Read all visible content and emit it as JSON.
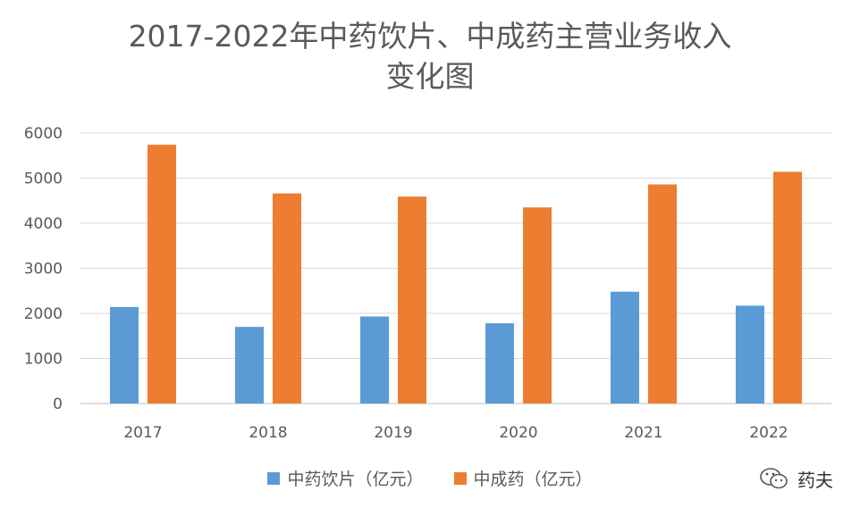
{
  "chart_data": {
    "type": "bar",
    "title_lines": [
      "2017-2022年中药饮片、中成药主营业务收入",
      "变化图"
    ],
    "categories": [
      "2017",
      "2018",
      "2019",
      "2020",
      "2021",
      "2022"
    ],
    "series": [
      {
        "name": "中药饮片（亿元）",
        "color": "#5b9bd5",
        "values": [
          2140,
          1700,
          1930,
          1780,
          2480,
          2170
        ]
      },
      {
        "name": "中成药（亿元）",
        "color": "#ed7d31",
        "values": [
          5740,
          4660,
          4590,
          4350,
          4860,
          5140
        ]
      }
    ],
    "ylim": [
      0,
      6000
    ],
    "yticks": [
      "0",
      "1000",
      "2000",
      "3000",
      "4000",
      "5000",
      "6000"
    ],
    "grid": true,
    "legend_position": "bottom"
  },
  "watermark": {
    "text": "药夫",
    "icon": "wechat-icon"
  }
}
